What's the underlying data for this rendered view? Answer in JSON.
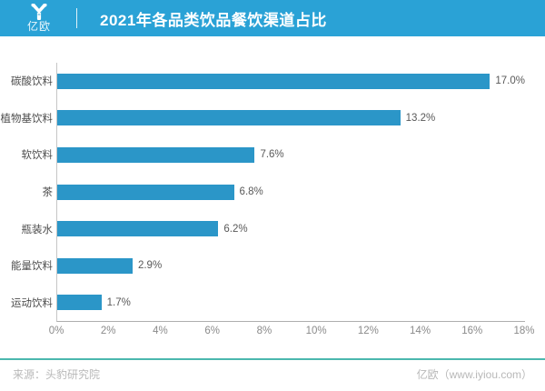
{
  "header": {
    "logo_text": "亿欧",
    "title": "2021年各品类饮品餐饮渠道占比",
    "bg_color": "#2AA2D6"
  },
  "chart_data": {
    "type": "bar",
    "orientation": "horizontal",
    "title": "2021年各品类饮品餐饮渠道占比",
    "categories": [
      "碳酸饮料",
      "植物基饮料",
      "软饮料",
      "茶",
      "瓶装水",
      "能量饮料",
      "运动饮料"
    ],
    "values": [
      17.0,
      13.2,
      7.6,
      6.8,
      6.2,
      2.9,
      1.7
    ],
    "value_labels": [
      "17.0%",
      "13.2%",
      "7.6%",
      "6.8%",
      "6.2%",
      "2.9%",
      "1.7%"
    ],
    "x_ticks": [
      "0%",
      "2%",
      "4%",
      "6%",
      "8%",
      "10%",
      "12%",
      "14%",
      "16%",
      "18%"
    ],
    "xlim": [
      0,
      18
    ],
    "xlabel": "",
    "ylabel": "",
    "grid": false,
    "legend": "none",
    "bar_color": "#2B96C8"
  },
  "footer": {
    "source": "来源：头豹研究院",
    "site": "亿欧（www.iyiou.com）",
    "rule_color": "#4BB7AE"
  }
}
